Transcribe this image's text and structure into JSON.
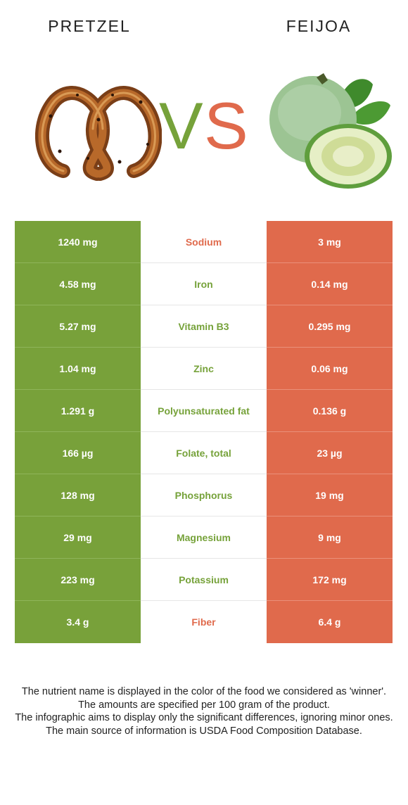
{
  "header": {
    "left_food": "PRETZEL",
    "right_food": "FEIJOA",
    "vs_v": "V",
    "vs_s": "S"
  },
  "colors": {
    "left_winner": "#78a13a",
    "right_winner": "#e06a4c"
  },
  "nutrients": [
    {
      "name": "Sodium",
      "left": "1240 mg",
      "right": "3 mg",
      "winner": "right"
    },
    {
      "name": "Iron",
      "left": "4.58 mg",
      "right": "0.14 mg",
      "winner": "left"
    },
    {
      "name": "Vitamin B3",
      "left": "5.27 mg",
      "right": "0.295 mg",
      "winner": "left"
    },
    {
      "name": "Zinc",
      "left": "1.04 mg",
      "right": "0.06 mg",
      "winner": "left"
    },
    {
      "name": "Polyunsaturated fat",
      "left": "1.291 g",
      "right": "0.136 g",
      "winner": "left"
    },
    {
      "name": "Folate, total",
      "left": "166 µg",
      "right": "23 µg",
      "winner": "left"
    },
    {
      "name": "Phosphorus",
      "left": "128 mg",
      "right": "19 mg",
      "winner": "left"
    },
    {
      "name": "Magnesium",
      "left": "29 mg",
      "right": "9 mg",
      "winner": "left"
    },
    {
      "name": "Potassium",
      "left": "223 mg",
      "right": "172 mg",
      "winner": "left"
    },
    {
      "name": "Fiber",
      "left": "3.4 g",
      "right": "6.4 g",
      "winner": "right"
    }
  ],
  "footer": {
    "line1": "The nutrient name is displayed in the color of the food we considered as 'winner'.",
    "line2": "The amounts are specified per 100 gram of the product.",
    "line3": "The infographic aims to display only the significant differences, ignoring minor ones.",
    "line4": "The main source of information is USDA Food Composition Database."
  }
}
